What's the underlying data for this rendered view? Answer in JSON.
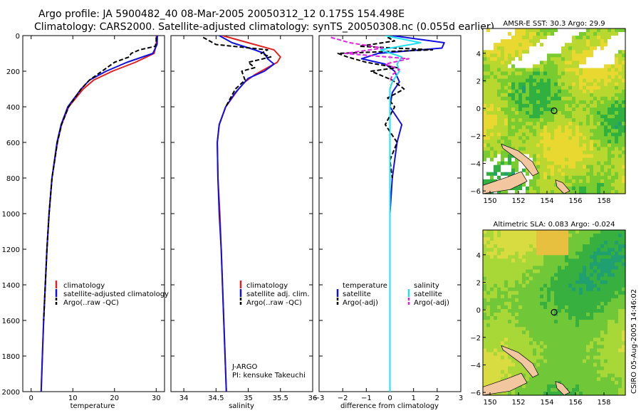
{
  "header": {
    "line1": "Argo profile: JA 5900482_40 08-Mar-2005 20050312_12 0.175S 154.498E",
    "line2": "Climatology: CARS2000. Satellite-adjusted climatology: synTS_20050308.nc (0.055d earlier)"
  },
  "colors": {
    "climatology": "#e02020",
    "satellite": "#1010e0",
    "argo": "#000000",
    "sal_satellite": "#20e0f0",
    "sal_argo": "#e020e0",
    "land": "#f2c7a0"
  },
  "chart_data": [
    {
      "type": "line",
      "id": "temperature",
      "xlabel": "temperature",
      "xlim": [
        -2,
        32
      ],
      "ylim": [
        2000,
        0
      ],
      "x_ticks": [
        0,
        10,
        20,
        30
      ],
      "y_ticks": [
        0,
        200,
        400,
        600,
        800,
        1000,
        1200,
        1400,
        1600,
        1800,
        2000
      ],
      "legend_placement": "bottom-right",
      "series": [
        {
          "name": "climatology",
          "style": "solid",
          "color": "#e02020",
          "depth": [
            0,
            50,
            100,
            150,
            200,
            250,
            300,
            400,
            500,
            600,
            800,
            1000,
            1200,
            1400,
            1600,
            1800,
            2000
          ],
          "value": [
            30.2,
            30.0,
            29.5,
            25.0,
            19.5,
            15.0,
            12.5,
            9.0,
            7.3,
            6.3,
            5.0,
            4.3,
            3.8,
            3.4,
            3.0,
            2.7,
            2.4
          ]
        },
        {
          "name": "satellite-adjusted climatology",
          "style": "solid",
          "color": "#1010e0",
          "depth": [
            0,
            50,
            100,
            150,
            200,
            250,
            300,
            400,
            500,
            600,
            800,
            1000,
            1200,
            1400,
            1600,
            1800,
            2000
          ],
          "value": [
            30.3,
            30.2,
            29.2,
            23.0,
            18.0,
            14.0,
            12.0,
            8.8,
            7.2,
            6.2,
            5.0,
            4.3,
            3.8,
            3.4,
            3.0,
            2.7,
            2.4
          ]
        },
        {
          "name": "Argo(..raw -QC)",
          "style": "dashed",
          "color": "#000000",
          "depth": [
            10,
            30,
            60,
            80,
            100,
            120,
            150,
            200,
            250,
            300,
            400,
            500,
            600,
            800,
            1000,
            1200,
            1400,
            1600
          ],
          "value": [
            30.0,
            30.0,
            29.8,
            26.0,
            24.0,
            23.5,
            20.0,
            17.0,
            14.0,
            12.0,
            9.0,
            7.3,
            6.3,
            5.0,
            4.3,
            3.8,
            3.4,
            3.0
          ]
        }
      ]
    },
    {
      "type": "line",
      "id": "salinity",
      "xlabel": "salinity",
      "xlim": [
        33.8,
        36.0
      ],
      "ylim": [
        2000,
        0
      ],
      "x_ticks": [
        34,
        34.5,
        35,
        35.5,
        36
      ],
      "legend_placement": "bottom-right",
      "annotations": [
        "J-ARGO",
        "PI: kensuke Takeuchi"
      ],
      "series": [
        {
          "name": "climatology",
          "style": "solid",
          "color": "#e02020",
          "depth": [
            0,
            40,
            80,
            120,
            150,
            180,
            220,
            260,
            300,
            400,
            500,
            600,
            800,
            1000,
            1200,
            1400,
            1600,
            1800,
            2000
          ],
          "value": [
            34.6,
            35.0,
            35.4,
            35.5,
            35.45,
            35.3,
            35.1,
            34.95,
            34.85,
            34.65,
            34.55,
            34.52,
            34.53,
            34.56,
            34.58,
            34.6,
            34.62,
            34.64,
            34.66
          ]
        },
        {
          "name": "satellite adj. clim.",
          "style": "solid",
          "color": "#1010e0",
          "depth": [
            0,
            40,
            80,
            100,
            130,
            160,
            200,
            240,
            280,
            320,
            400,
            500,
            600,
            800,
            1000,
            1200,
            1400,
            1600,
            1800,
            2000
          ],
          "value": [
            34.55,
            34.75,
            35.1,
            35.25,
            35.3,
            35.4,
            35.25,
            35.0,
            34.9,
            34.8,
            34.65,
            34.55,
            34.52,
            34.53,
            34.55,
            34.58,
            34.6,
            34.62,
            34.64,
            34.66
          ]
        },
        {
          "name": "Argo(..raw -QC)",
          "style": "dashed",
          "color": "#000000",
          "depth": [
            10,
            30,
            50,
            80,
            100,
            120,
            150,
            180,
            200,
            250,
            300,
            400
          ],
          "value": [
            34.3,
            34.4,
            34.5,
            35.3,
            35.2,
            35.35,
            35.0,
            35.1,
            34.9,
            34.95,
            34.8,
            34.65
          ]
        }
      ]
    },
    {
      "type": "line",
      "id": "difference",
      "xlabel": "difference from climatology",
      "xlim": [
        -3,
        3
      ],
      "ylim": [
        2000,
        0
      ],
      "x_ticks": [
        -3,
        -2,
        -1,
        0,
        1,
        2,
        3
      ],
      "legend_placement": "bottom",
      "legend_groups": [
        "temperature",
        "salinity"
      ],
      "series": [
        {
          "name": "satellite",
          "group": "temperature",
          "style": "solid",
          "color": "#1010e0",
          "depth": [
            0,
            40,
            70,
            100,
            130,
            160,
            200,
            260,
            320,
            400,
            500,
            600,
            800,
            1000,
            1500,
            2000
          ],
          "value": [
            0.1,
            2.3,
            2.2,
            -0.5,
            -1.2,
            -0.2,
            0.2,
            0.4,
            0.1,
            0.0,
            0.5,
            0.3,
            0.1,
            0.0,
            0.0,
            0.0
          ]
        },
        {
          "name": "Argo(-adj)",
          "group": "temperature",
          "style": "dashed",
          "color": "#000000",
          "depth": [
            10,
            30,
            60,
            80,
            100,
            120,
            150,
            180,
            200,
            250,
            300,
            350,
            400,
            500,
            600,
            700,
            800
          ],
          "value": [
            -0.1,
            0.2,
            -1.3,
            1.8,
            -2.2,
            -1.8,
            -1.0,
            0.3,
            -0.8,
            0.1,
            0.6,
            -0.1,
            0.2,
            -0.2,
            0.3,
            0.0,
            0.1
          ]
        },
        {
          "name": "satellite",
          "group": "salinity",
          "style": "solid",
          "color": "#20e0f0",
          "depth": [
            0,
            40,
            80,
            120,
            160,
            200,
            260,
            300,
            400,
            600,
            800,
            1000,
            1500,
            2000
          ],
          "value": [
            -0.2,
            1.3,
            -0.4,
            0.5,
            0.3,
            0.4,
            0.1,
            0.0,
            0.0,
            0.0,
            0.0,
            0.0,
            0.0,
            0.0
          ]
        },
        {
          "name": "Argo(-adj)",
          "group": "salinity",
          "style": "dashed",
          "color": "#e020e0",
          "depth": [
            10,
            40,
            70,
            100,
            130,
            160,
            190,
            220,
            260
          ],
          "value": [
            -2.5,
            -1.7,
            -0.3,
            -1.9,
            0.8,
            -0.2,
            0.4,
            0.1,
            0.0
          ]
        }
      ]
    },
    {
      "type": "heatmap",
      "id": "sst_map",
      "title": "AMSR-E SST: 30.3 Argo: 29.9",
      "xlim": [
        149.5,
        159.5
      ],
      "ylim": [
        -6.2,
        5.8
      ],
      "x_ticks": [
        150,
        152,
        154,
        156,
        158
      ],
      "y_ticks": [
        -6,
        -4,
        -2,
        0,
        2,
        4
      ],
      "argo_position": [
        154.498,
        -0.175
      ]
    },
    {
      "type": "heatmap",
      "id": "sla_map",
      "title": "Altimetric SLA: 0.083 Argo: -0.024",
      "xlim": [
        149.5,
        159.5
      ],
      "ylim": [
        -6.2,
        5.8
      ],
      "x_ticks": [
        150,
        152,
        154,
        156,
        158
      ],
      "y_ticks": [
        -6,
        -4,
        -2,
        0,
        2,
        4
      ],
      "argo_position": [
        154.498,
        -0.175
      ]
    }
  ],
  "footer": {
    "credit": "CSIRO 05-Aug-2005 14:46:02"
  }
}
